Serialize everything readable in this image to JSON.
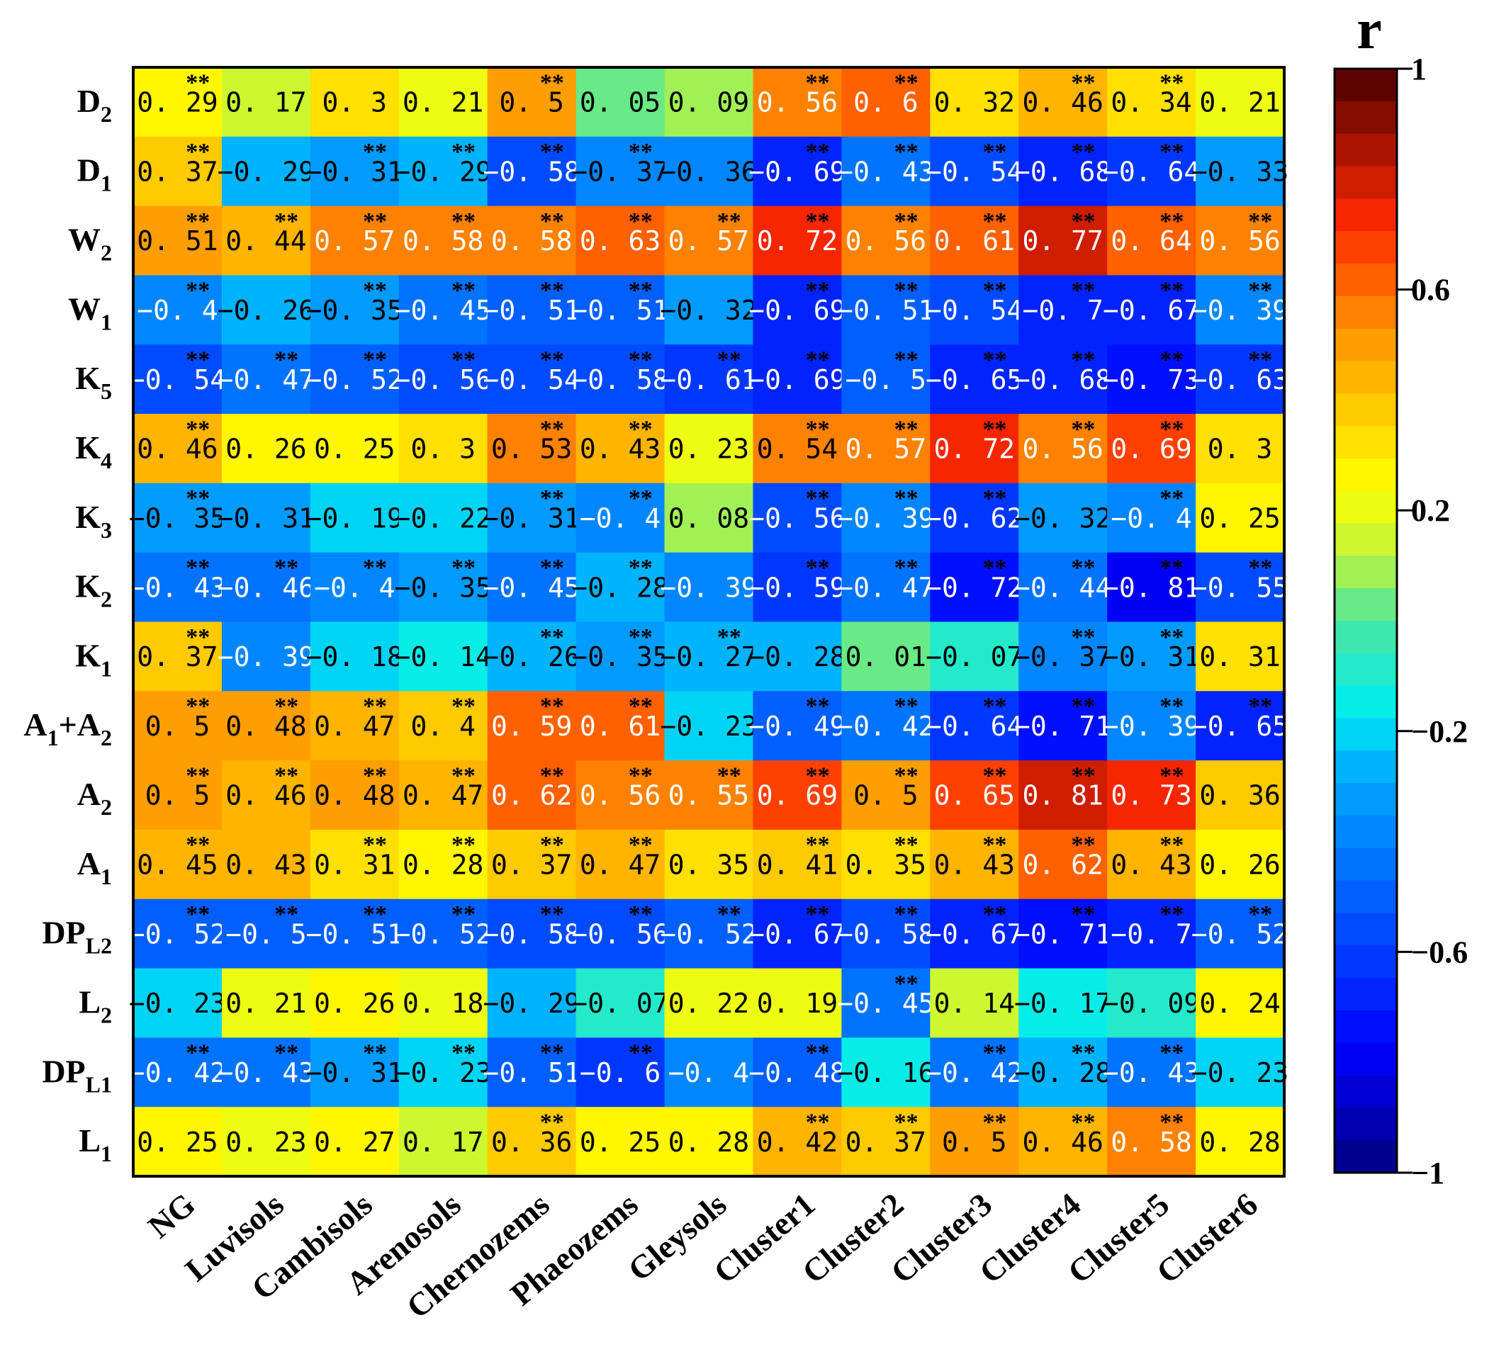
{
  "chart_data": {
    "type": "heatmap",
    "title": "",
    "colorbar_title": "r",
    "colorbar_ticks": [
      "1",
      "0.6",
      "0.2",
      "-0.2",
      "-0.6",
      "-1"
    ],
    "color_range": [
      -1,
      1
    ],
    "columns": [
      "NG",
      "Luvisols",
      "Cambisols",
      "Arenosols",
      "Chernozems",
      "Phaeozems",
      "Gleysols",
      "Cluster1",
      "Cluster2",
      "Cluster3",
      "Cluster4",
      "Cluster5",
      "Cluster6"
    ],
    "rows": [
      {
        "label": "D",
        "sub": "2",
        "values": [
          0.29,
          0.17,
          0.3,
          0.21,
          0.5,
          0.05,
          0.09,
          0.56,
          0.6,
          0.32,
          0.46,
          0.34,
          0.21
        ],
        "sig": [
          1,
          0,
          0,
          0,
          1,
          0,
          0,
          1,
          1,
          0,
          1,
          1,
          0
        ]
      },
      {
        "label": "D",
        "sub": "1",
        "values": [
          0.37,
          -0.29,
          -0.31,
          -0.29,
          -0.58,
          -0.37,
          -0.36,
          -0.69,
          -0.43,
          -0.54,
          -0.68,
          -0.64,
          -0.33
        ],
        "sig": [
          1,
          0,
          1,
          1,
          1,
          1,
          0,
          1,
          1,
          1,
          1,
          1,
          0
        ]
      },
      {
        "label": "W",
        "sub": "2",
        "values": [
          0.51,
          0.44,
          0.57,
          0.58,
          0.58,
          0.63,
          0.57,
          0.72,
          0.56,
          0.61,
          0.77,
          0.64,
          0.56
        ],
        "sig": [
          1,
          1,
          1,
          1,
          1,
          1,
          1,
          1,
          1,
          1,
          1,
          1,
          1
        ]
      },
      {
        "label": "W",
        "sub": "1",
        "values": [
          -0.4,
          -0.26,
          -0.35,
          -0.45,
          -0.51,
          -0.51,
          -0.32,
          -0.69,
          -0.51,
          -0.54,
          -0.7,
          -0.67,
          -0.39
        ],
        "sig": [
          1,
          0,
          1,
          1,
          1,
          1,
          0,
          1,
          1,
          1,
          1,
          1,
          1
        ]
      },
      {
        "label": "K",
        "sub": "5",
        "values": [
          -0.54,
          -0.47,
          -0.52,
          -0.56,
          -0.54,
          -0.58,
          -0.61,
          -0.69,
          -0.5,
          -0.65,
          -0.68,
          -0.73,
          -0.63
        ],
        "sig": [
          1,
          1,
          1,
          1,
          1,
          1,
          1,
          1,
          1,
          1,
          1,
          1,
          1
        ]
      },
      {
        "label": "K",
        "sub": "4",
        "values": [
          0.46,
          0.26,
          0.25,
          0.3,
          0.53,
          0.43,
          0.23,
          0.54,
          0.57,
          0.72,
          0.56,
          0.69,
          0.3
        ],
        "sig": [
          1,
          0,
          0,
          0,
          1,
          1,
          0,
          1,
          1,
          1,
          1,
          1,
          0
        ]
      },
      {
        "label": "K",
        "sub": "3",
        "values": [
          -0.35,
          -0.31,
          -0.19,
          -0.22,
          -0.31,
          -0.4,
          0.08,
          -0.56,
          -0.39,
          -0.62,
          -0.32,
          -0.4,
          0.25
        ],
        "sig": [
          1,
          0,
          0,
          0,
          1,
          1,
          0,
          1,
          1,
          1,
          0,
          1,
          0
        ]
      },
      {
        "label": "K",
        "sub": "2",
        "values": [
          -0.43,
          -0.46,
          -0.4,
          -0.35,
          -0.45,
          -0.28,
          -0.39,
          -0.59,
          -0.47,
          -0.72,
          -0.44,
          -0.81,
          -0.55
        ],
        "sig": [
          1,
          1,
          1,
          1,
          1,
          1,
          0,
          1,
          1,
          1,
          1,
          1,
          1
        ]
      },
      {
        "label": "K",
        "sub": "1",
        "values": [
          0.37,
          -0.39,
          -0.18,
          -0.14,
          -0.26,
          -0.35,
          -0.27,
          -0.28,
          0.01,
          -0.07,
          -0.37,
          -0.31,
          0.31
        ],
        "sig": [
          1,
          0,
          0,
          0,
          1,
          1,
          1,
          0,
          0,
          0,
          1,
          1,
          0
        ]
      },
      {
        "label": "A",
        "sub": "1",
        "label2": "+A",
        "sub2": "2",
        "values": [
          0.5,
          0.48,
          0.47,
          0.4,
          0.59,
          0.61,
          -0.23,
          -0.49,
          -0.42,
          -0.64,
          -0.71,
          -0.39,
          -0.65
        ],
        "sig": [
          1,
          1,
          1,
          1,
          1,
          1,
          0,
          1,
          1,
          1,
          1,
          1,
          1
        ]
      },
      {
        "label": "A",
        "sub": "2",
        "values": [
          0.5,
          0.46,
          0.48,
          0.47,
          0.62,
          0.56,
          0.55,
          0.69,
          0.5,
          0.65,
          0.81,
          0.73,
          0.36
        ],
        "sig": [
          1,
          1,
          1,
          1,
          1,
          1,
          1,
          1,
          1,
          1,
          1,
          1,
          0
        ]
      },
      {
        "label": "A",
        "sub": "1",
        "values": [
          0.45,
          0.43,
          0.31,
          0.28,
          0.37,
          0.47,
          0.35,
          0.41,
          0.35,
          0.43,
          0.62,
          0.43,
          0.26
        ],
        "sig": [
          1,
          0,
          1,
          1,
          1,
          1,
          0,
          1,
          1,
          1,
          1,
          1,
          0
        ]
      },
      {
        "label": "DP",
        "sub": "L2",
        "values": [
          -0.52,
          -0.5,
          -0.51,
          -0.52,
          -0.58,
          -0.56,
          -0.52,
          -0.67,
          -0.58,
          -0.67,
          -0.71,
          -0.7,
          -0.52
        ],
        "sig": [
          1,
          1,
          1,
          1,
          1,
          1,
          1,
          1,
          1,
          1,
          1,
          1,
          1
        ]
      },
      {
        "label": "L",
        "sub": "2",
        "values": [
          -0.23,
          0.21,
          0.26,
          0.18,
          -0.29,
          -0.07,
          0.22,
          0.19,
          -0.45,
          0.14,
          -0.17,
          -0.09,
          0.24
        ],
        "sig": [
          0,
          0,
          0,
          0,
          0,
          0,
          0,
          0,
          1,
          0,
          0,
          0,
          0
        ]
      },
      {
        "label": "DP",
        "sub": "L1",
        "values": [
          -0.42,
          -0.43,
          -0.31,
          -0.23,
          -0.51,
          -0.6,
          -0.4,
          -0.48,
          -0.16,
          -0.42,
          -0.28,
          -0.43,
          -0.23
        ],
        "sig": [
          1,
          1,
          1,
          1,
          1,
          1,
          0,
          1,
          0,
          1,
          1,
          1,
          0
        ]
      },
      {
        "label": "L",
        "sub": "1",
        "values": [
          0.25,
          0.23,
          0.27,
          0.17,
          0.36,
          0.25,
          0.28,
          0.42,
          0.37,
          0.5,
          0.46,
          0.58,
          0.28
        ],
        "sig": [
          0,
          0,
          0,
          0,
          1,
          0,
          0,
          1,
          1,
          1,
          1,
          1,
          0
        ]
      }
    ],
    "significance_marker": "**"
  }
}
